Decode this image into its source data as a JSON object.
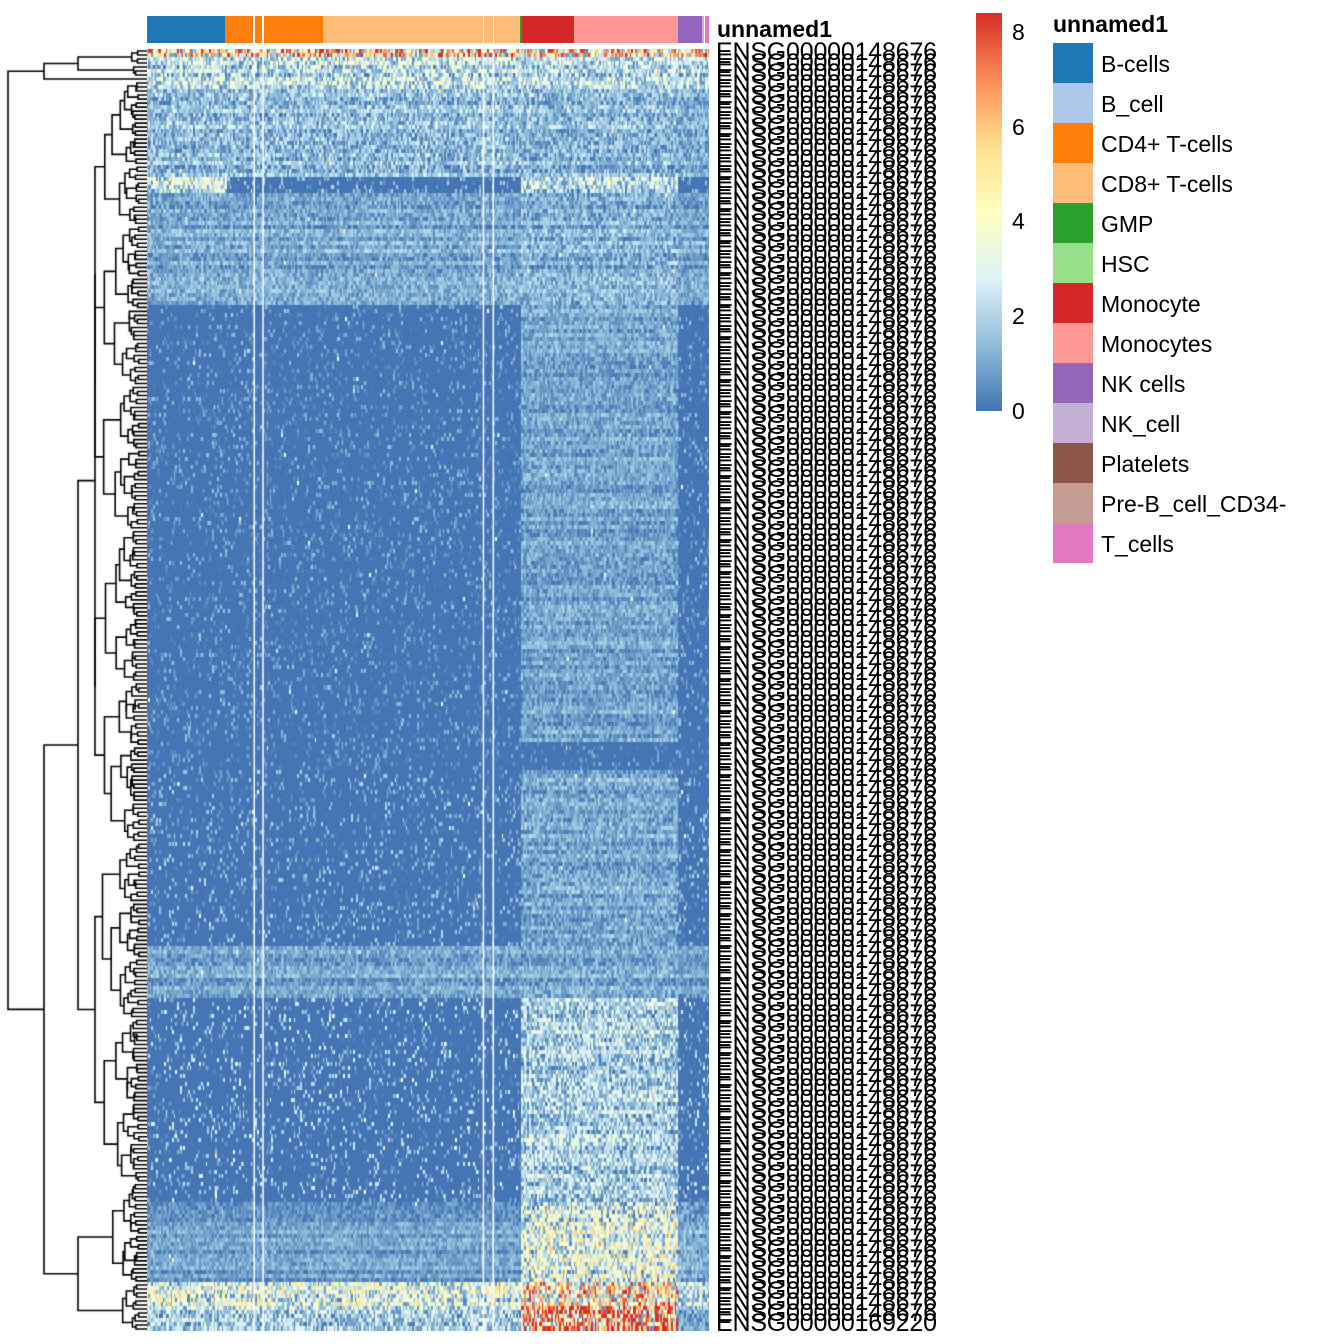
{
  "chart_data": {
    "type": "heatmap",
    "title": "",
    "row_label_samples": {
      "first": "ENSG00000148676",
      "last": "ENSG00000169220"
    },
    "n_rows_approx": 320,
    "column_annotation": {
      "name": "unnamed1",
      "groups": [
        {
          "label": "B-cells",
          "fraction": 0.139,
          "color": "#1F77B4"
        },
        {
          "label": "CD4+ T-cells",
          "fraction": 0.174,
          "color": "#FF7F0E",
          "gaps_at": [
            0.29,
            0.38
          ]
        },
        {
          "label": "CD8+ T-cells",
          "fraction": 0.351,
          "color": "#FFBB78",
          "gaps_at": [
            0.81,
            0.86
          ]
        },
        {
          "label": "GMP",
          "fraction": 0.004,
          "color": "#2CA02C"
        },
        {
          "label": "Monocyte",
          "fraction": 0.091,
          "color": "#D62728"
        },
        {
          "label": "Monocytes",
          "fraction": 0.185,
          "color": "#FF9896"
        },
        {
          "label": "NK cells",
          "fraction": 0.044,
          "color": "#9467BD"
        },
        {
          "label": "NK_cell",
          "fraction": 0.004,
          "color": "#C5B0D5"
        },
        {
          "label": "T_cells",
          "fraction": 0.008,
          "color": "#E377C2"
        }
      ]
    },
    "row_bands": [
      {
        "rows_frac": [
          0.0,
          0.006
        ],
        "levels": {
          "lymph": 5.0,
          "mono": 4.8,
          "nk": 4.8
        }
      },
      {
        "rows_frac": [
          0.006,
          0.03
        ],
        "levels": {
          "lymph": 2.2,
          "mono": 2.0,
          "nk": 2.0
        }
      },
      {
        "rows_frac": [
          0.03,
          0.1
        ],
        "levels": {
          "lymph": 1.5,
          "mono": 1.4,
          "nk": 1.2
        }
      },
      {
        "rows_frac": [
          0.1,
          0.11
        ],
        "levels": {
          "bcell": 2.6,
          "lymph": 0.3,
          "mono": 2.0,
          "nk": 0.4
        }
      },
      {
        "rows_frac": [
          0.11,
          0.2
        ],
        "levels": {
          "lymph": 1.0,
          "mono": 1.2,
          "nk": 0.9
        }
      },
      {
        "rows_frac": [
          0.2,
          0.54
        ],
        "levels": {
          "lymph": 0.15,
          "mono": 0.9,
          "nk": 0.2
        }
      },
      {
        "rows_frac": [
          0.54,
          0.56
        ],
        "levels": {
          "lymph": 0.1,
          "mono": 0.1,
          "nk": 0.1
        }
      },
      {
        "rows_frac": [
          0.56,
          0.7
        ],
        "levels": {
          "lymph": 0.3,
          "mono": 1.0,
          "nk": 0.3
        }
      },
      {
        "rows_frac": [
          0.7,
          0.74
        ],
        "levels": {
          "lymph": 0.9,
          "mono": 1.0,
          "nk": 0.8
        }
      },
      {
        "rows_frac": [
          0.74,
          0.9
        ],
        "levels": {
          "lymph": 0.5,
          "mono": 1.9,
          "nk": 0.5
        }
      },
      {
        "rows_frac": [
          0.9,
          0.96
        ],
        "levels": {
          "lymph": 0.8,
          "mono": 3.0,
          "nk": 1.0
        }
      },
      {
        "rows_frac": [
          0.96,
          0.98
        ],
        "levels": {
          "lymph": 3.0,
          "mono": 4.5,
          "nk": 2.6
        }
      },
      {
        "rows_frac": [
          0.98,
          1.0
        ],
        "levels": {
          "lymph": 2.0,
          "mono": 6.4,
          "nk": 1.2
        }
      }
    ],
    "colorbar": {
      "ticks": [
        "0",
        "2",
        "4",
        "6",
        "8"
      ],
      "range": [
        0,
        8.4
      ],
      "palette": [
        "#4575B4",
        "#91BFDB",
        "#E0F3F8",
        "#FFFFBF",
        "#FEE090",
        "#FC8D59",
        "#D73027"
      ]
    },
    "legend": {
      "title": "unnamed1",
      "placement": "top-right",
      "entries": [
        {
          "label": "B-cells",
          "color": "#1F77B4"
        },
        {
          "label": "B_cell",
          "color": "#AEC7E8"
        },
        {
          "label": "CD4+ T-cells",
          "color": "#FF7F0E"
        },
        {
          "label": "CD8+ T-cells",
          "color": "#FFBB78"
        },
        {
          "label": "GMP",
          "color": "#2CA02C"
        },
        {
          "label": "HSC",
          "color": "#98DF8A"
        },
        {
          "label": "Monocyte",
          "color": "#D62728"
        },
        {
          "label": "Monocytes",
          "color": "#FF9896"
        },
        {
          "label": "NK cells",
          "color": "#9467BD"
        },
        {
          "label": "NK_cell",
          "color": "#C5B0D5"
        },
        {
          "label": "Platelets",
          "color": "#8C564B"
        },
        {
          "label": "Pre-B_cell_CD34-",
          "color": "#C49C94"
        },
        {
          "label": "T_cells",
          "color": "#E377C2"
        }
      ]
    }
  }
}
